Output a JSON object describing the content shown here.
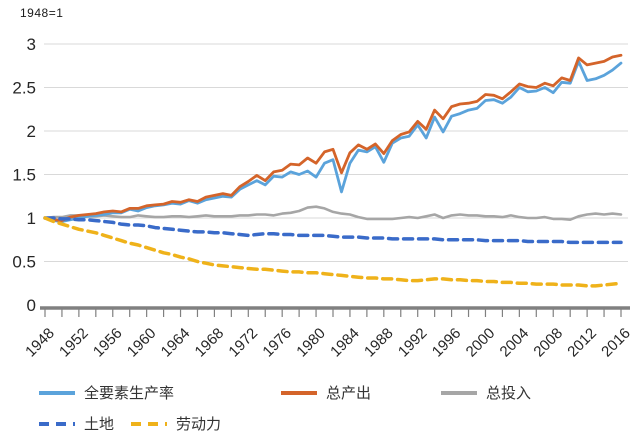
{
  "note": "1948=1",
  "chart_data": {
    "type": "line",
    "title": "",
    "xlabel": "",
    "ylabel": "1948=1",
    "ylim": [
      0,
      3
    ],
    "y_ticks": [
      0,
      0.5,
      1,
      1.5,
      2,
      2.5,
      3
    ],
    "y_tick_labels": [
      "0",
      "0.5",
      "1",
      "1.5",
      "2",
      "2.5",
      "3"
    ],
    "x_range": [
      1948,
      2016
    ],
    "x_minor_tick_step": 2,
    "x_label_step": 4,
    "x_tick_labels": [
      "1948",
      "1952",
      "1956",
      "1960",
      "1964",
      "1968",
      "1972",
      "1976",
      "1980",
      "1984",
      "1988",
      "1992",
      "1996",
      "2000",
      "2004",
      "2008",
      "2012",
      "2016"
    ],
    "grid": "horizontal",
    "legend_position": "bottom",
    "colors": {
      "grid": "#d9d9d9",
      "axis": "#808080",
      "tick_text": "#262626"
    },
    "series": [
      {
        "name": "inputs",
        "label": "总投入",
        "color": "#a6a6a6",
        "style": "solid",
        "width": 2.6,
        "values": [
          1.0,
          1.01,
          1.01,
          1.03,
          1.03,
          1.02,
          1.02,
          1.03,
          1.02,
          1.01,
          1.01,
          1.03,
          1.02,
          1.01,
          1.01,
          1.02,
          1.02,
          1.01,
          1.02,
          1.03,
          1.02,
          1.02,
          1.02,
          1.03,
          1.03,
          1.04,
          1.04,
          1.03,
          1.05,
          1.06,
          1.08,
          1.12,
          1.13,
          1.11,
          1.07,
          1.05,
          1.04,
          1.01,
          0.99,
          0.99,
          0.99,
          0.99,
          1.0,
          1.01,
          1.0,
          1.02,
          1.04,
          1.0,
          1.03,
          1.04,
          1.03,
          1.03,
          1.02,
          1.02,
          1.01,
          1.03,
          1.01,
          1.0,
          1.0,
          1.01,
          0.99,
          0.99,
          0.98,
          1.02,
          1.04,
          1.05,
          1.04,
          1.05,
          1.04
        ]
      },
      {
        "name": "tfp",
        "label": "全要素生产率",
        "color": "#5ba3db",
        "style": "solid",
        "width": 2.8,
        "values": [
          1.0,
          0.97,
          0.96,
          0.98,
          1.0,
          1.02,
          1.03,
          1.04,
          1.06,
          1.06,
          1.1,
          1.08,
          1.12,
          1.14,
          1.15,
          1.17,
          1.16,
          1.2,
          1.17,
          1.21,
          1.23,
          1.25,
          1.24,
          1.33,
          1.38,
          1.43,
          1.38,
          1.48,
          1.47,
          1.53,
          1.5,
          1.54,
          1.47,
          1.63,
          1.67,
          1.3,
          1.63,
          1.78,
          1.76,
          1.82,
          1.64,
          1.86,
          1.92,
          1.94,
          2.07,
          1.92,
          2.16,
          1.99,
          2.17,
          2.2,
          2.24,
          2.26,
          2.35,
          2.36,
          2.32,
          2.39,
          2.5,
          2.45,
          2.46,
          2.5,
          2.44,
          2.56,
          2.55,
          2.8,
          2.58,
          2.6,
          2.64,
          2.7,
          2.78
        ]
      },
      {
        "name": "output",
        "label": "总产出",
        "color": "#d4642a",
        "style": "solid",
        "width": 2.8,
        "values": [
          1.0,
          0.98,
          0.97,
          1.01,
          1.03,
          1.04,
          1.05,
          1.07,
          1.08,
          1.07,
          1.11,
          1.11,
          1.14,
          1.15,
          1.16,
          1.19,
          1.18,
          1.21,
          1.19,
          1.24,
          1.26,
          1.28,
          1.26,
          1.36,
          1.42,
          1.49,
          1.43,
          1.53,
          1.55,
          1.62,
          1.61,
          1.69,
          1.63,
          1.76,
          1.79,
          1.52,
          1.75,
          1.84,
          1.79,
          1.85,
          1.74,
          1.89,
          1.96,
          1.99,
          2.11,
          2.02,
          2.24,
          2.14,
          2.28,
          2.31,
          2.32,
          2.34,
          2.42,
          2.41,
          2.37,
          2.45,
          2.54,
          2.51,
          2.5,
          2.55,
          2.52,
          2.61,
          2.58,
          2.84,
          2.76,
          2.78,
          2.8,
          2.85,
          2.87
        ]
      },
      {
        "name": "land",
        "label": "土地",
        "color": "#3a6bc9",
        "style": "dashed",
        "width": 3.5,
        "values": [
          1.0,
          1.0,
          0.99,
          0.99,
          0.98,
          0.98,
          0.97,
          0.96,
          0.95,
          0.93,
          0.92,
          0.92,
          0.91,
          0.89,
          0.88,
          0.87,
          0.86,
          0.85,
          0.84,
          0.84,
          0.83,
          0.83,
          0.82,
          0.81,
          0.8,
          0.81,
          0.82,
          0.82,
          0.81,
          0.81,
          0.8,
          0.8,
          0.8,
          0.8,
          0.79,
          0.78,
          0.78,
          0.78,
          0.77,
          0.77,
          0.77,
          0.76,
          0.76,
          0.76,
          0.76,
          0.76,
          0.76,
          0.75,
          0.75,
          0.75,
          0.75,
          0.75,
          0.74,
          0.74,
          0.74,
          0.74,
          0.74,
          0.73,
          0.73,
          0.73,
          0.73,
          0.73,
          0.72,
          0.72,
          0.72,
          0.72,
          0.72,
          0.72,
          0.72
        ]
      },
      {
        "name": "labor",
        "label": "劳动力",
        "color": "#efb21a",
        "style": "dashed",
        "width": 3.5,
        "values": [
          1.0,
          0.96,
          0.93,
          0.9,
          0.87,
          0.85,
          0.83,
          0.8,
          0.77,
          0.74,
          0.71,
          0.69,
          0.66,
          0.63,
          0.6,
          0.58,
          0.55,
          0.53,
          0.5,
          0.48,
          0.46,
          0.45,
          0.44,
          0.43,
          0.42,
          0.41,
          0.41,
          0.4,
          0.39,
          0.38,
          0.38,
          0.37,
          0.37,
          0.36,
          0.35,
          0.34,
          0.33,
          0.32,
          0.31,
          0.31,
          0.3,
          0.3,
          0.29,
          0.28,
          0.28,
          0.29,
          0.3,
          0.3,
          0.29,
          0.29,
          0.28,
          0.28,
          0.27,
          0.27,
          0.26,
          0.26,
          0.25,
          0.25,
          0.24,
          0.24,
          0.24,
          0.23,
          0.23,
          0.23,
          0.22,
          0.22,
          0.23,
          0.24,
          0.25
        ]
      }
    ]
  }
}
